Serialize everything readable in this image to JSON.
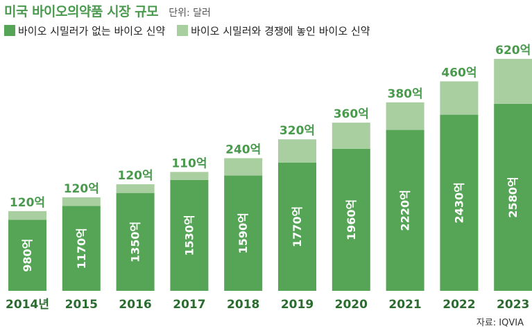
{
  "header": {
    "title": "미국 바이오의약품 시장 규모",
    "unit": "단위: 달러"
  },
  "source": "자료: IQVIA",
  "colors": {
    "dark_green": "#56a557",
    "light_green": "#a9cfa0",
    "title_green": "#4a9a4e",
    "inner_label": "#ffffff"
  },
  "chart_data": {
    "type": "bar",
    "stacked": true,
    "title": "미국 바이오의약품 시장 규모",
    "unit": "단위: 달러",
    "categories": [
      "2014년",
      "2015",
      "2016",
      "2017",
      "2018",
      "2019",
      "2020",
      "2021",
      "2022",
      "2023"
    ],
    "series": [
      {
        "name": "바이오 시밀러가 없는 바이오 신약",
        "values": [
          980,
          1170,
          1350,
          1530,
          1590,
          1770,
          1960,
          2220,
          2430,
          2580
        ],
        "labels": [
          "980억",
          "1170억",
          "1350억",
          "1530억",
          "1590억",
          "1770억",
          "1960억",
          "2220억",
          "2430억",
          "2580억"
        ],
        "color": "#56a557"
      },
      {
        "name": "바이오 시밀러와 경쟁에 놓인 바이오 신약",
        "values": [
          120,
          120,
          120,
          110,
          240,
          320,
          360,
          380,
          460,
          620
        ],
        "labels": [
          "120억",
          "120억",
          "120억",
          "110억",
          "240억",
          "320억",
          "360억",
          "380억",
          "460억",
          "620억"
        ],
        "color": "#a9cfa0"
      }
    ],
    "ylim": [
      0,
      3200
    ],
    "grid": false,
    "legend_position": "top-left"
  }
}
